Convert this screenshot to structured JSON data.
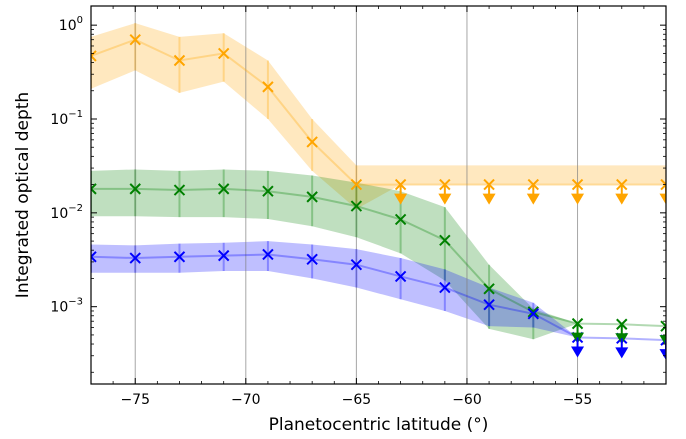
{
  "chart_data": {
    "type": "line",
    "title": "",
    "xlabel": "Planetocentric latitude (°)",
    "ylabel": "Integrated optical depth",
    "xlim": [
      -77,
      -51
    ],
    "ylim": [
      0.00015,
      1.6
    ],
    "yscale": "log",
    "grid": "vertical lines at major x ticks",
    "legend": "none",
    "x_ticks": [
      -75,
      -70,
      -65,
      -60,
      -55
    ],
    "x_tick_labels": [
      "−75",
      "−70",
      "−65",
      "−60",
      "−55"
    ],
    "y_ticks": [
      0.001,
      0.01,
      0.1,
      1
    ],
    "y_tick_labels": [
      {
        "base": "10",
        "exp": "−3"
      },
      {
        "base": "10",
        "exp": "−2"
      },
      {
        "base": "10",
        "exp": "−1"
      },
      {
        "base": "10",
        "exp": "0"
      }
    ],
    "series": [
      {
        "color": "#FFA500",
        "x": [
          -77,
          -75,
          -73,
          -71,
          -69,
          -67,
          -65,
          -63,
          -61,
          -59,
          -57,
          -55,
          -53,
          -51
        ],
        "y": [
          0.47,
          0.7,
          0.42,
          0.5,
          0.22,
          0.057,
          0.02,
          0.02,
          0.02,
          0.02,
          0.02,
          0.02,
          0.02,
          0.02
        ],
        "lower": [
          0.21,
          0.33,
          0.19,
          0.25,
          0.1,
          0.028,
          0.011,
          0.02,
          0.02,
          0.02,
          0.02,
          0.02,
          0.02,
          0.02
        ],
        "upper": [
          0.75,
          1.05,
          0.75,
          0.82,
          0.42,
          0.1,
          0.032,
          0.032,
          0.032,
          0.032,
          0.032,
          0.032,
          0.032,
          0.032
        ],
        "upper_limit_from_x": -63
      },
      {
        "color": "#008000",
        "x": [
          -77,
          -75,
          -73,
          -71,
          -69,
          -67,
          -65,
          -63,
          -61,
          -59,
          -57,
          -55,
          -53,
          -51
        ],
        "y": [
          0.018,
          0.018,
          0.0175,
          0.018,
          0.017,
          0.0148,
          0.0118,
          0.0085,
          0.0051,
          0.00155,
          0.00088,
          0.00066,
          0.00065,
          0.00062
        ],
        "lower": [
          0.0092,
          0.0092,
          0.009,
          0.009,
          0.0086,
          0.0072,
          0.0055,
          0.0037,
          0.0019,
          0.00058,
          0.00045,
          0.00066,
          0.00065,
          0.00062
        ],
        "upper": [
          0.028,
          0.029,
          0.028,
          0.029,
          0.028,
          0.025,
          0.021,
          0.017,
          0.0115,
          0.0028,
          0.00095,
          0.00066,
          0.00065,
          0.00062
        ],
        "upper_limit_from_x": -55
      },
      {
        "color": "#0000FF",
        "x": [
          -77,
          -75,
          -73,
          -71,
          -69,
          -67,
          -65,
          -63,
          -61,
          -59,
          -57,
          -55,
          -53,
          -51
        ],
        "y": [
          0.0034,
          0.0033,
          0.0034,
          0.0035,
          0.0036,
          0.0032,
          0.0028,
          0.0021,
          0.0016,
          0.00105,
          0.00084,
          0.00047,
          0.00046,
          0.00044
        ],
        "lower": [
          0.0023,
          0.0023,
          0.0023,
          0.0024,
          0.0024,
          0.002,
          0.0016,
          0.0012,
          0.0009,
          0.00062,
          0.0006,
          0.00047,
          0.00046,
          0.00044
        ],
        "upper": [
          0.0046,
          0.0045,
          0.0047,
          0.0048,
          0.005,
          0.0046,
          0.0041,
          0.0033,
          0.0025,
          0.0016,
          0.0011,
          0.00047,
          0.00046,
          0.00044
        ],
        "upper_limit_from_x": -55
      }
    ]
  }
}
